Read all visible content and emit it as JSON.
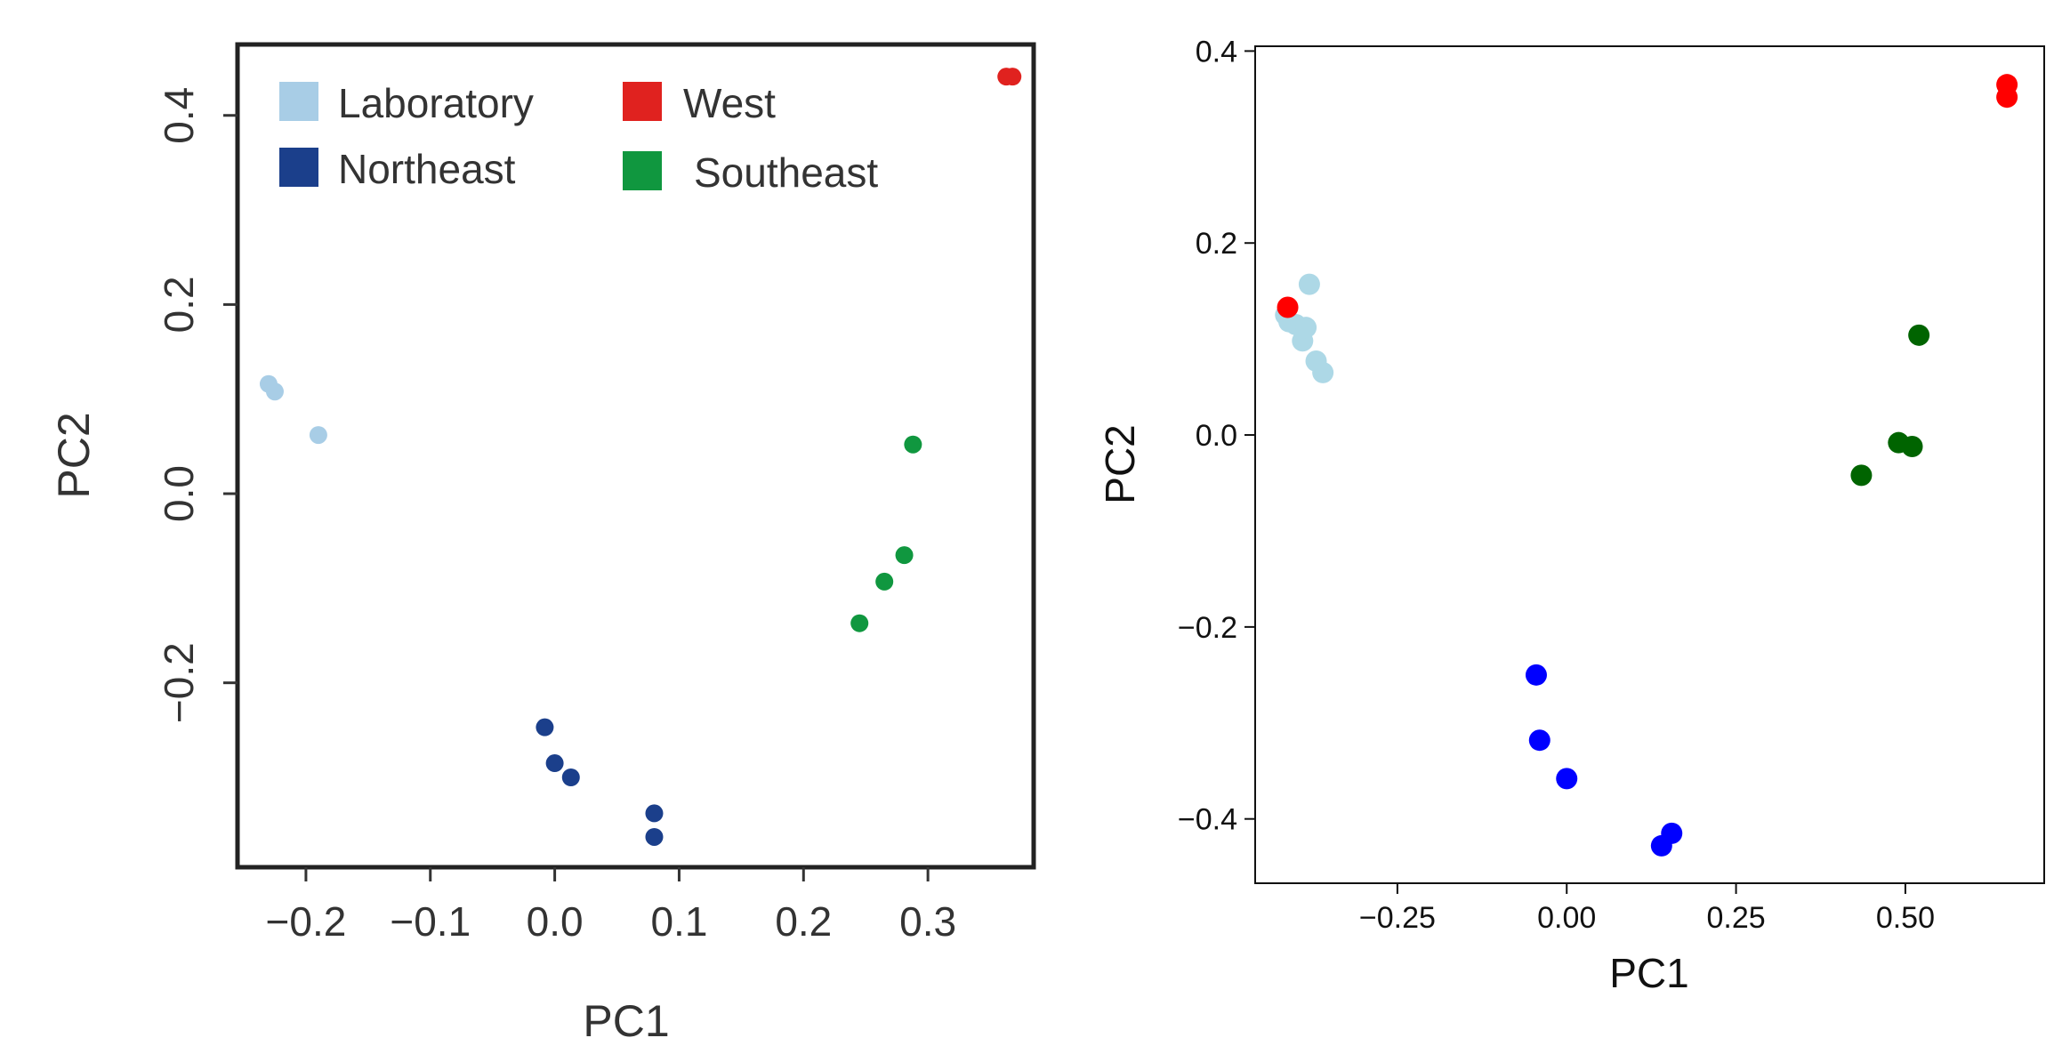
{
  "colors": {
    "Laboratory": "#a8cde6",
    "Northeast": "#1b3f8b",
    "West": "#e0221f",
    "Southeast": "#10973f",
    "right_Laboratory": "#add8e6",
    "right_Northeast": "#0000ff",
    "right_West": "#ff0000",
    "right_Southeast": "#006400"
  },
  "chart_data": [
    {
      "type": "scatter",
      "xlabel": "PC1",
      "ylabel": "PC2",
      "xlim": [
        -0.255,
        0.385
      ],
      "ylim": [
        -0.395,
        0.475
      ],
      "x_ticks": [
        -0.2,
        -0.1,
        0.0,
        0.1,
        0.2,
        0.3
      ],
      "x_tick_labels": [
        "−0.2",
        "−0.1",
        "0.0",
        "0.1",
        "0.2",
        "0.3"
      ],
      "y_ticks": [
        -0.2,
        0.0,
        0.2,
        0.4
      ],
      "y_tick_labels": [
        "−0.2",
        "0.0",
        "0.2",
        "0.4"
      ],
      "legend_position": "top-left",
      "legend_order": [
        "Laboratory",
        "West",
        "Northeast",
        "Southeast"
      ],
      "grid": false,
      "series": [
        {
          "name": "Laboratory",
          "x": [
            -0.23,
            -0.225,
            -0.19
          ],
          "y": [
            0.116,
            0.108,
            0.062
          ]
        },
        {
          "name": "Northeast",
          "x": [
            -0.008,
            0.0,
            0.013,
            0.08,
            0.08
          ],
          "y": [
            -0.247,
            -0.285,
            -0.3,
            -0.338,
            -0.363
          ]
        },
        {
          "name": "West",
          "x": [
            0.363,
            0.368
          ],
          "y": [
            0.441,
            0.441
          ]
        },
        {
          "name": "Southeast",
          "x": [
            0.245,
            0.265,
            0.281,
            0.288
          ],
          "y": [
            -0.137,
            -0.093,
            -0.065,
            0.052
          ]
        }
      ]
    },
    {
      "type": "scatter",
      "xlabel": "PC1",
      "ylabel": "PC2",
      "xlim": [
        -0.46,
        0.705
      ],
      "ylim": [
        -0.467,
        0.405
      ],
      "x_ticks": [
        -0.25,
        0.0,
        0.25,
        0.5
      ],
      "x_tick_labels": [
        "−0.25",
        "0.00",
        "0.25",
        "0.50"
      ],
      "y_ticks": [
        -0.4,
        -0.2,
        0.0,
        0.2,
        0.4
      ],
      "y_tick_labels": [
        "−0.4",
        "−0.2",
        "0.0",
        "0.2",
        "0.4"
      ],
      "grid": false,
      "series": [
        {
          "name": "Laboratory",
          "x": [
            -0.415,
            -0.41,
            -0.4,
            -0.39,
            -0.385,
            -0.38,
            -0.37,
            -0.36
          ],
          "y": [
            0.125,
            0.118,
            0.115,
            0.098,
            0.112,
            0.157,
            0.077,
            0.065
          ]
        },
        {
          "name": "Northeast",
          "x": [
            -0.045,
            -0.04,
            0.0,
            0.14,
            0.155
          ],
          "y": [
            -0.25,
            -0.318,
            -0.358,
            -0.428,
            -0.415
          ]
        },
        {
          "name": "West",
          "x": [
            -0.412,
            0.65,
            0.65
          ],
          "y": [
            0.133,
            0.365,
            0.352
          ]
        },
        {
          "name": "Southeast",
          "x": [
            0.435,
            0.49,
            0.51,
            0.52
          ],
          "y": [
            -0.042,
            -0.008,
            -0.012,
            0.104
          ]
        }
      ]
    }
  ]
}
